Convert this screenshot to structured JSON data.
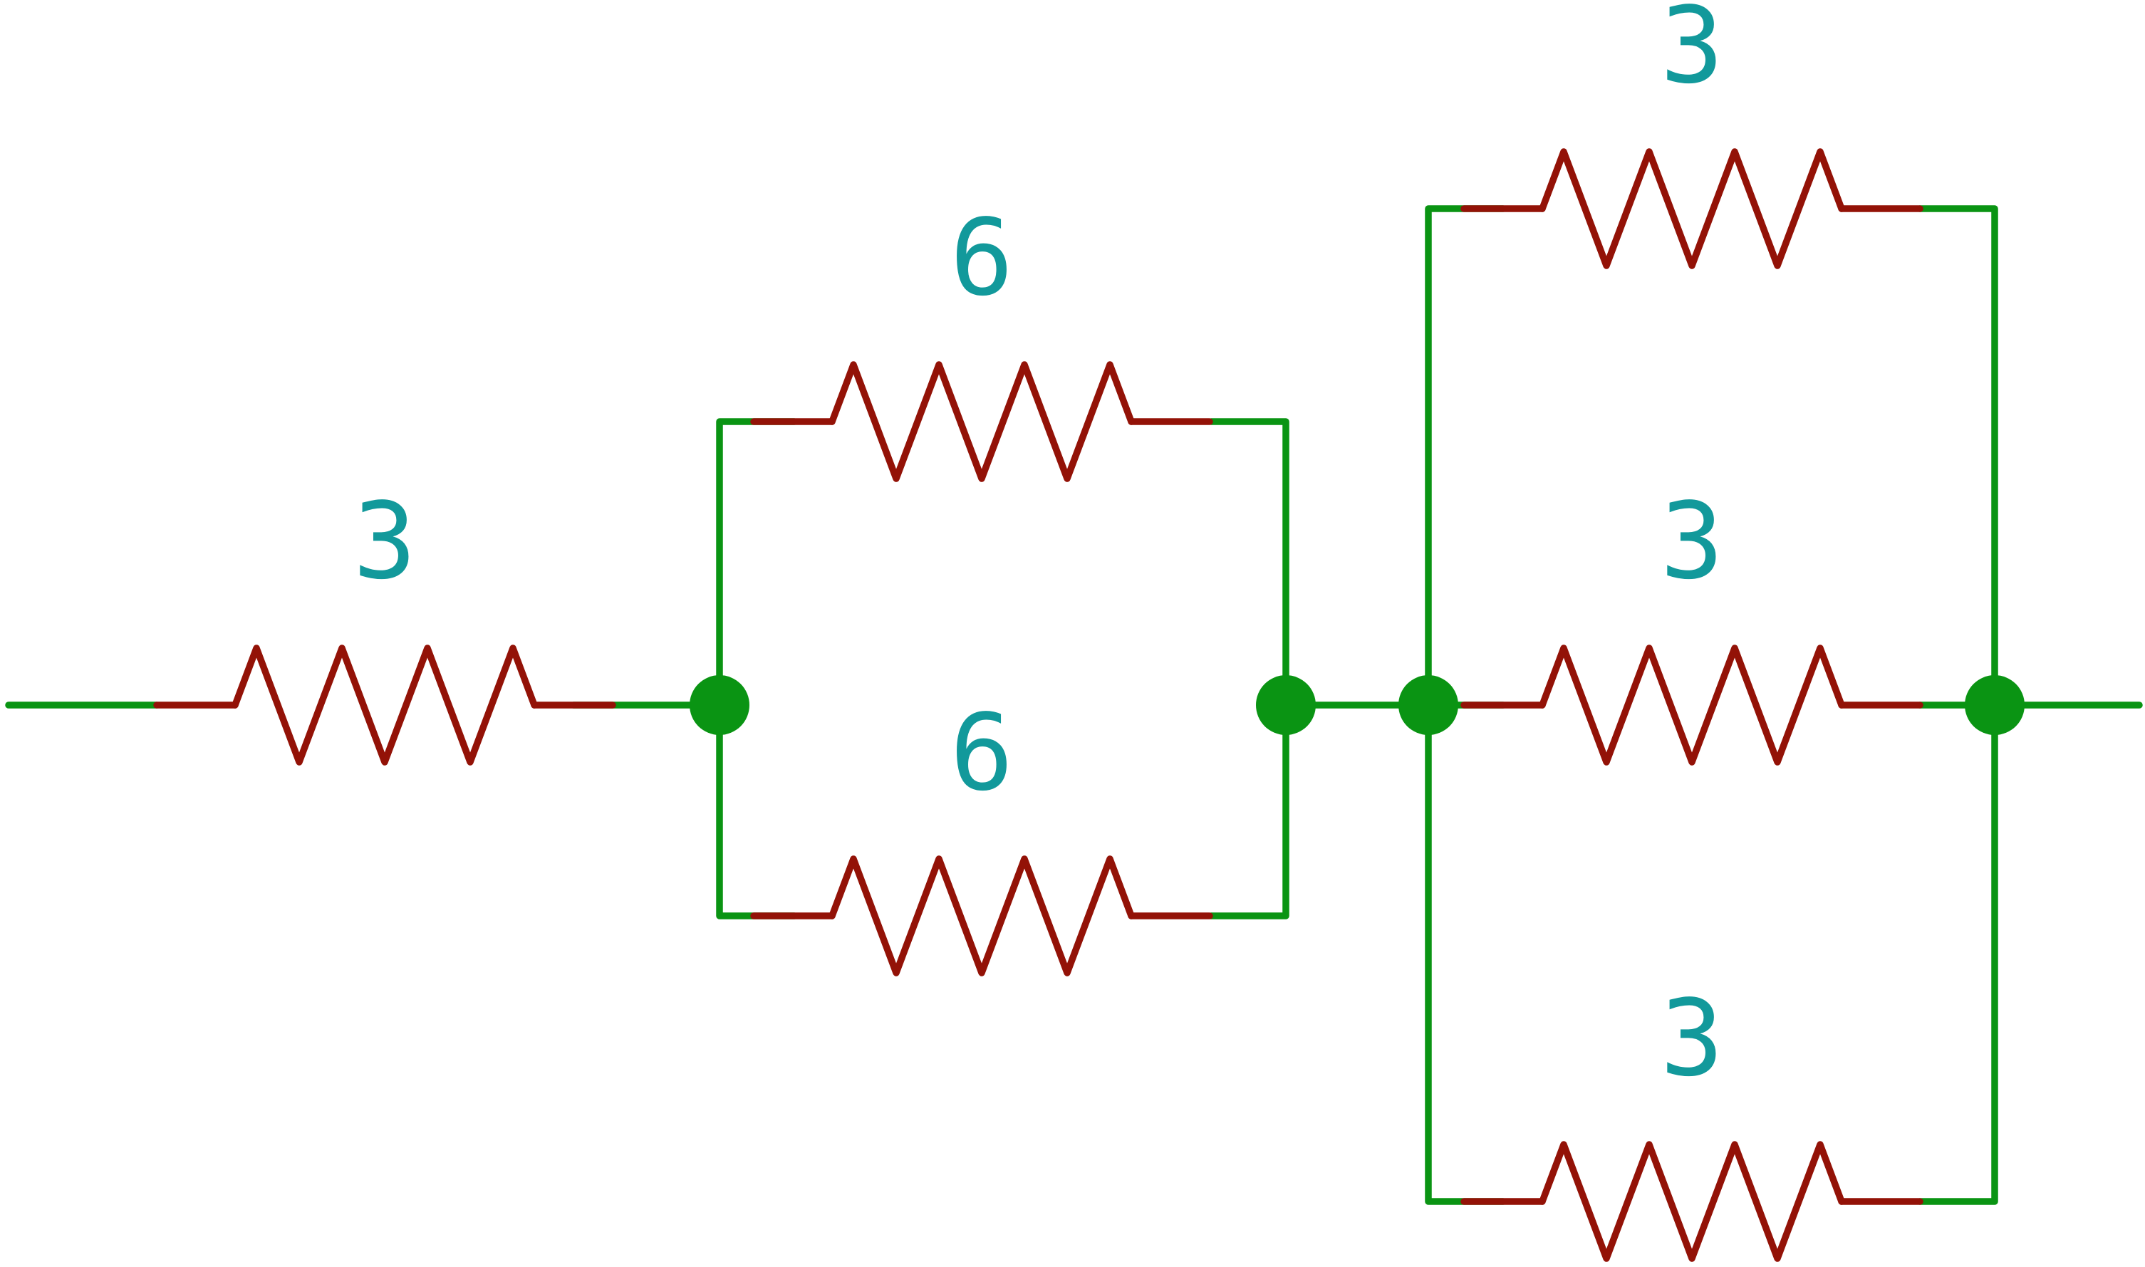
{
  "circuit": {
    "colors": {
      "wire": "#0a9413",
      "resistor": "#931207",
      "label": "#12999b",
      "background": "#ffffff"
    },
    "resistors": [
      {
        "id": "r-series",
        "value": "3"
      },
      {
        "id": "r-mid-top",
        "value": "6"
      },
      {
        "id": "r-mid-bottom",
        "value": "6"
      },
      {
        "id": "r-right-top",
        "value": "3"
      },
      {
        "id": "r-right-middle",
        "value": "3"
      },
      {
        "id": "r-right-bottom",
        "value": "3"
      }
    ]
  }
}
